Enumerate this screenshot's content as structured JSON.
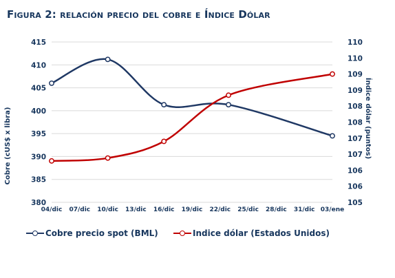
{
  "title": "Figura 2: relación precio del cobre e Índice Dólar",
  "chart_data": {
    "type": "line",
    "categories": [
      "04/dic",
      "07/dic",
      "10/dic",
      "13/dic",
      "16/dic",
      "19/dic",
      "22/dic",
      "25/dic",
      "28/dic",
      "31/dic",
      "03/ene"
    ],
    "y_left": {
      "label": "Cobre (cUS$ x libra)",
      "min": 380,
      "max": 415,
      "ticks": [
        380,
        385,
        390,
        395,
        400,
        405,
        410,
        415
      ]
    },
    "y_right": {
      "label": "Índice dólar (puntos)",
      "min": 105,
      "max": 110,
      "tick_labels": [
        "105",
        "106",
        "106",
        "107",
        "107",
        "108",
        "108",
        "109",
        "109",
        "110",
        "110"
      ]
    },
    "series": [
      {
        "name": "Cobre precio spot (BML)",
        "axis": "left",
        "color": "#1f3864",
        "x": [
          0,
          2,
          4,
          6.3,
          10
        ],
        "y": [
          406,
          411.2,
          401.3,
          401.3,
          394.5
        ]
      },
      {
        "name": "Indice dólar (Estados Unidos)",
        "axis": "right",
        "color": "#c00000",
        "x": [
          0,
          2,
          4,
          6.3,
          10
        ],
        "y": [
          106.29,
          106.38,
          106.9,
          108.34,
          109.0
        ]
      }
    ],
    "grid": true,
    "legend": "bottom"
  }
}
